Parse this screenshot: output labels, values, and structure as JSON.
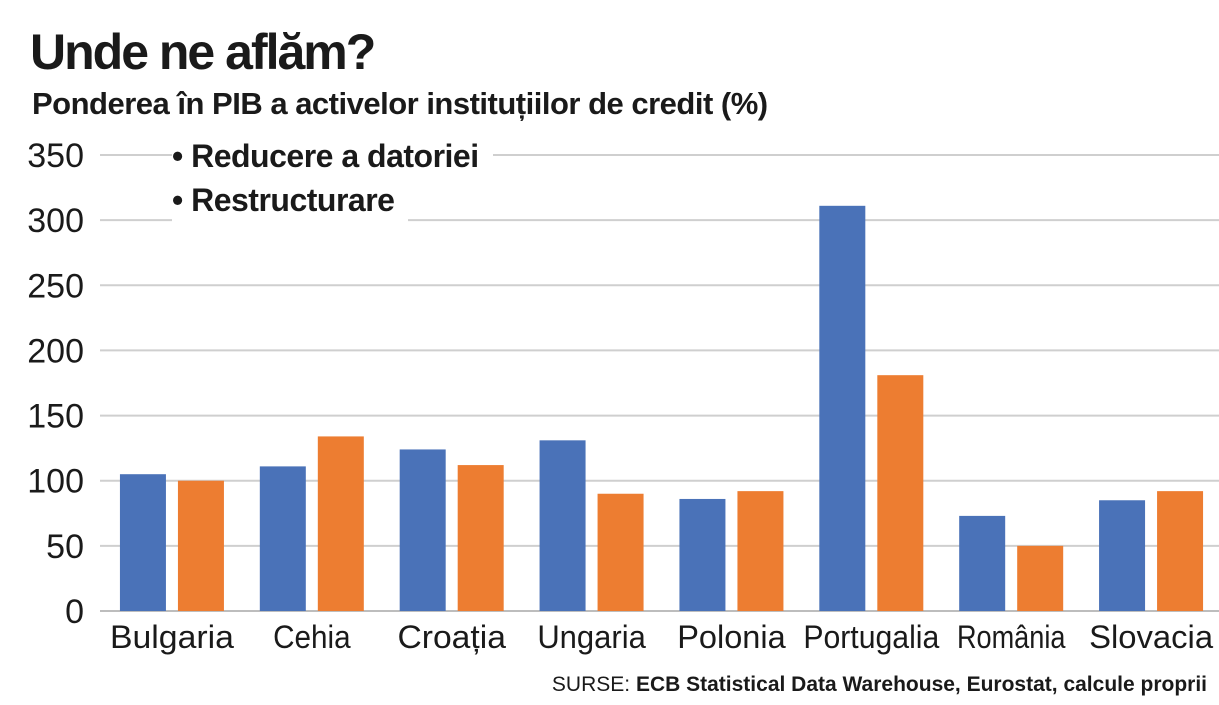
{
  "header": {
    "title": "Unde ne aflăm?",
    "subtitle": "Ponderea în PIB a activelor instituțiilor de credit (%)"
  },
  "annotations": {
    "items": [
      "• Reducere a datoriei",
      "• Restructurare"
    ]
  },
  "source": {
    "prefix": "SURSE: ",
    "text": "ECB Statistical Data Warehouse, Eurostat, calcule proprii"
  },
  "chart_data": {
    "type": "bar",
    "title": "Unde ne aflăm?",
    "subtitle": "Ponderea în PIB a activelor instituțiilor de credit (%)",
    "categories": [
      "Bulgaria",
      "Cehia",
      "Croația",
      "Ungaria",
      "Polonia",
      "Portugalia",
      "România",
      "Slovacia"
    ],
    "series": [
      {
        "color": "#4a72b8",
        "values": [
          105,
          111,
          124,
          131,
          86,
          311,
          73,
          85
        ]
      },
      {
        "color": "#ed7d31",
        "values": [
          100,
          134,
          112,
          90,
          92,
          181,
          50,
          92
        ]
      }
    ],
    "ylim": [
      0,
      350
    ],
    "yticks": [
      0,
      50,
      100,
      150,
      200,
      250,
      300,
      350
    ],
    "grid": true,
    "legend": "none"
  }
}
